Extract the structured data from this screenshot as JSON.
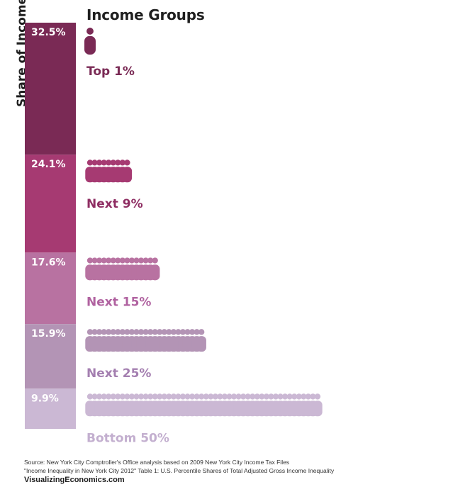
{
  "chart_data": {
    "type": "bar",
    "title": "Income Groups",
    "ylabel": "Share of Income",
    "categories": [
      "Top 1%",
      "Next 9%",
      "Next 15%",
      "Next 25%",
      "Bottom 50%"
    ],
    "values": [
      32.5,
      24.1,
      17.6,
      15.9,
      9.9
    ],
    "value_labels": [
      "32.5%",
      "24.1%",
      "17.6%",
      "15.9%",
      "9.9%"
    ],
    "people_icons": [
      1,
      9,
      15,
      25,
      50
    ],
    "colors": [
      "#7a2a55",
      "#a63a72",
      "#b872a1",
      "#b394b5",
      "#cbb8d4"
    ],
    "label_colors": [
      "#7a2a55",
      "#8f2e63",
      "#b062a0",
      "#a47fb0",
      "#c3afcf"
    ]
  },
  "footer": {
    "source": "Source: New York City Comptroller's Office analysis based on 2009 New York City Income Tax Files",
    "note": "\"Income Inequality in New York City 2012\" Table 1: U.S. Percentile Shares of Total Adjusted Gross Income Inequality",
    "brand": "VisualizingEconomics.com"
  }
}
